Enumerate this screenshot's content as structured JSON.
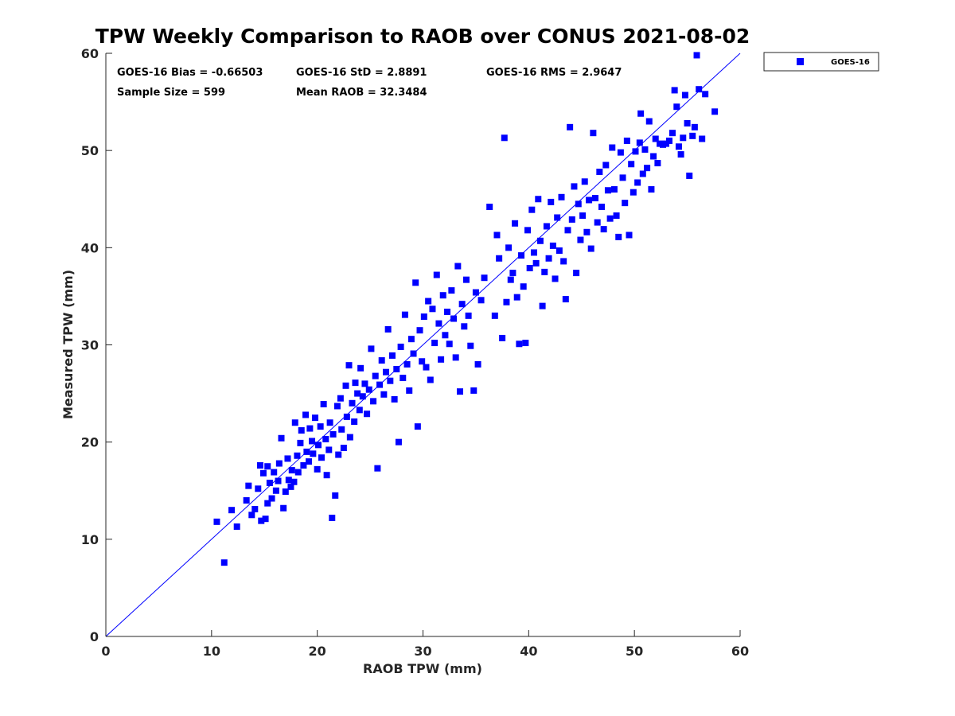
{
  "chart_data": {
    "type": "scatter",
    "title": "TPW Weekly Comparison to RAOB over CONUS 2021-08-02",
    "xlabel": "RAOB TPW (mm)",
    "ylabel": "Measured TPW (mm)",
    "xlim": [
      0,
      60
    ],
    "ylim": [
      0,
      60
    ],
    "xticks": [
      "0",
      "10",
      "20",
      "30",
      "40",
      "50",
      "60"
    ],
    "yticks": [
      "0",
      "10",
      "20",
      "30",
      "40",
      "50",
      "60"
    ],
    "grid": false,
    "legend_position": "outside-top-right",
    "reference_line": {
      "name": "1:1 line",
      "x": [
        0,
        60
      ],
      "y": [
        0,
        60
      ],
      "color": "#0000ff"
    },
    "stats": {
      "bias": "GOES-16 Bias = -0.66503",
      "std": "GOES-16 StD = 2.8891",
      "rms": "GOES-16 RMS = 2.9647",
      "sample_size": "Sample Size = 599",
      "mean_raob": "Mean RAOB = 32.3484"
    },
    "series": [
      {
        "name": "GOES-16",
        "color": "#0000ff",
        "marker": "square",
        "points": [
          [
            10.5,
            11.8
          ],
          [
            11.2,
            7.6
          ],
          [
            11.9,
            13.0
          ],
          [
            12.4,
            11.3
          ],
          [
            13.3,
            14.0
          ],
          [
            13.5,
            15.5
          ],
          [
            13.8,
            12.5
          ],
          [
            14.1,
            13.1
          ],
          [
            14.4,
            15.2
          ],
          [
            14.6,
            17.6
          ],
          [
            14.7,
            11.9
          ],
          [
            14.9,
            16.8
          ],
          [
            15.1,
            12.1
          ],
          [
            15.3,
            13.7
          ],
          [
            15.3,
            17.5
          ],
          [
            15.5,
            15.8
          ],
          [
            15.7,
            14.2
          ],
          [
            15.9,
            16.9
          ],
          [
            16.1,
            15.0
          ],
          [
            16.3,
            16.0
          ],
          [
            16.4,
            17.8
          ],
          [
            16.6,
            20.4
          ],
          [
            16.8,
            13.2
          ],
          [
            17.0,
            14.9
          ],
          [
            17.2,
            18.3
          ],
          [
            17.3,
            16.1
          ],
          [
            17.5,
            15.4
          ],
          [
            17.6,
            17.1
          ],
          [
            17.8,
            15.9
          ],
          [
            17.9,
            22.0
          ],
          [
            18.1,
            18.6
          ],
          [
            18.2,
            16.9
          ],
          [
            18.4,
            19.9
          ],
          [
            18.5,
            21.2
          ],
          [
            18.7,
            17.6
          ],
          [
            18.9,
            22.8
          ],
          [
            19.0,
            19.0
          ],
          [
            19.2,
            18.0
          ],
          [
            19.3,
            21.4
          ],
          [
            19.5,
            20.1
          ],
          [
            19.6,
            18.8
          ],
          [
            19.8,
            22.5
          ],
          [
            20.0,
            17.2
          ],
          [
            20.1,
            19.7
          ],
          [
            20.3,
            21.6
          ],
          [
            20.4,
            18.4
          ],
          [
            20.6,
            23.9
          ],
          [
            20.8,
            20.3
          ],
          [
            20.9,
            16.6
          ],
          [
            21.1,
            19.2
          ],
          [
            21.2,
            22.0
          ],
          [
            21.4,
            12.2
          ],
          [
            21.5,
            20.8
          ],
          [
            21.7,
            14.5
          ],
          [
            21.9,
            23.7
          ],
          [
            22.0,
            18.7
          ],
          [
            22.2,
            24.5
          ],
          [
            22.3,
            21.3
          ],
          [
            22.5,
            19.4
          ],
          [
            22.7,
            25.8
          ],
          [
            22.8,
            22.6
          ],
          [
            23.0,
            27.9
          ],
          [
            23.1,
            20.5
          ],
          [
            23.3,
            24.0
          ],
          [
            23.5,
            22.1
          ],
          [
            23.6,
            26.1
          ],
          [
            23.8,
            25.0
          ],
          [
            24.0,
            23.3
          ],
          [
            24.1,
            27.6
          ],
          [
            24.3,
            24.7
          ],
          [
            24.5,
            26.0
          ],
          [
            24.7,
            22.9
          ],
          [
            24.9,
            25.4
          ],
          [
            25.1,
            29.6
          ],
          [
            25.3,
            24.2
          ],
          [
            25.5,
            26.8
          ],
          [
            25.7,
            17.3
          ],
          [
            25.9,
            25.9
          ],
          [
            26.1,
            28.4
          ],
          [
            26.3,
            24.9
          ],
          [
            26.5,
            27.2
          ],
          [
            26.7,
            31.6
          ],
          [
            26.9,
            26.3
          ],
          [
            27.1,
            28.9
          ],
          [
            27.3,
            24.4
          ],
          [
            27.5,
            27.5
          ],
          [
            27.7,
            20.0
          ],
          [
            27.9,
            29.8
          ],
          [
            28.1,
            26.6
          ],
          [
            28.3,
            33.1
          ],
          [
            28.5,
            28.0
          ],
          [
            28.7,
            25.3
          ],
          [
            28.9,
            30.6
          ],
          [
            29.1,
            29.1
          ],
          [
            29.3,
            36.4
          ],
          [
            29.5,
            21.6
          ],
          [
            29.7,
            31.5
          ],
          [
            29.9,
            28.3
          ],
          [
            30.1,
            32.9
          ],
          [
            30.3,
            27.7
          ],
          [
            30.5,
            34.5
          ],
          [
            30.7,
            26.4
          ],
          [
            30.9,
            33.7
          ],
          [
            31.1,
            30.2
          ],
          [
            31.3,
            37.2
          ],
          [
            31.5,
            32.2
          ],
          [
            31.7,
            28.5
          ],
          [
            31.9,
            35.1
          ],
          [
            32.1,
            31.0
          ],
          [
            32.3,
            33.4
          ],
          [
            32.5,
            30.1
          ],
          [
            32.7,
            35.6
          ],
          [
            32.9,
            32.7
          ],
          [
            33.1,
            28.7
          ],
          [
            33.3,
            38.1
          ],
          [
            33.5,
            25.2
          ],
          [
            33.7,
            34.2
          ],
          [
            33.9,
            31.9
          ],
          [
            34.1,
            36.7
          ],
          [
            34.3,
            33.0
          ],
          [
            34.5,
            29.9
          ],
          [
            34.8,
            25.3
          ],
          [
            35.0,
            35.4
          ],
          [
            35.2,
            28.0
          ],
          [
            35.5,
            34.6
          ],
          [
            35.8,
            36.9
          ],
          [
            36.3,
            44.2
          ],
          [
            36.8,
            33.0
          ],
          [
            37.0,
            41.3
          ],
          [
            37.2,
            38.9
          ],
          [
            37.5,
            30.7
          ],
          [
            37.7,
            51.3
          ],
          [
            37.9,
            34.4
          ],
          [
            38.1,
            40.0
          ],
          [
            38.3,
            36.7
          ],
          [
            38.5,
            37.4
          ],
          [
            38.7,
            42.5
          ],
          [
            38.9,
            34.9
          ],
          [
            39.1,
            30.1
          ],
          [
            39.3,
            39.2
          ],
          [
            39.5,
            36.0
          ],
          [
            39.7,
            30.2
          ],
          [
            39.9,
            41.8
          ],
          [
            40.1,
            37.9
          ],
          [
            40.3,
            43.9
          ],
          [
            40.5,
            39.5
          ],
          [
            40.7,
            38.4
          ],
          [
            40.9,
            45.0
          ],
          [
            41.1,
            40.7
          ],
          [
            41.3,
            34.0
          ],
          [
            41.5,
            37.5
          ],
          [
            41.7,
            42.2
          ],
          [
            41.9,
            38.9
          ],
          [
            42.1,
            44.7
          ],
          [
            42.3,
            40.2
          ],
          [
            42.5,
            36.8
          ],
          [
            42.7,
            43.1
          ],
          [
            42.9,
            39.7
          ],
          [
            43.1,
            45.2
          ],
          [
            43.3,
            38.6
          ],
          [
            43.5,
            34.7
          ],
          [
            43.7,
            41.8
          ],
          [
            43.9,
            52.4
          ],
          [
            44.1,
            42.9
          ],
          [
            44.3,
            46.3
          ],
          [
            44.5,
            37.4
          ],
          [
            44.7,
            44.5
          ],
          [
            44.9,
            40.8
          ],
          [
            45.1,
            43.3
          ],
          [
            45.3,
            46.8
          ],
          [
            45.5,
            41.6
          ],
          [
            45.7,
            44.9
          ],
          [
            45.9,
            39.9
          ],
          [
            46.1,
            51.8
          ],
          [
            46.3,
            45.1
          ],
          [
            46.5,
            42.6
          ],
          [
            46.7,
            47.8
          ],
          [
            46.9,
            44.2
          ],
          [
            47.1,
            41.9
          ],
          [
            47.3,
            48.5
          ],
          [
            47.5,
            45.9
          ],
          [
            47.7,
            43.0
          ],
          [
            47.9,
            50.3
          ],
          [
            48.1,
            46.0
          ],
          [
            48.3,
            43.3
          ],
          [
            48.5,
            41.1
          ],
          [
            48.7,
            49.8
          ],
          [
            48.9,
            47.2
          ],
          [
            49.1,
            44.6
          ],
          [
            49.3,
            51.0
          ],
          [
            49.5,
            41.3
          ],
          [
            49.7,
            48.6
          ],
          [
            49.9,
            45.7
          ],
          [
            50.1,
            49.9
          ],
          [
            50.3,
            46.7
          ],
          [
            50.5,
            50.8
          ],
          [
            50.6,
            53.8
          ],
          [
            50.8,
            47.6
          ],
          [
            51.0,
            50.1
          ],
          [
            51.2,
            48.2
          ],
          [
            51.4,
            53.0
          ],
          [
            51.6,
            46.0
          ],
          [
            51.8,
            49.4
          ],
          [
            52.0,
            51.2
          ],
          [
            52.2,
            48.7
          ],
          [
            52.4,
            50.7
          ],
          [
            52.7,
            50.6
          ],
          [
            53.0,
            50.7
          ],
          [
            53.3,
            51.0
          ],
          [
            53.6,
            51.8
          ],
          [
            53.8,
            56.2
          ],
          [
            54.0,
            54.5
          ],
          [
            54.2,
            50.4
          ],
          [
            54.4,
            49.6
          ],
          [
            54.6,
            51.3
          ],
          [
            54.8,
            55.7
          ],
          [
            55.0,
            52.8
          ],
          [
            55.2,
            47.4
          ],
          [
            55.5,
            51.5
          ],
          [
            55.7,
            52.4
          ],
          [
            55.9,
            59.8
          ],
          [
            56.1,
            56.3
          ],
          [
            56.4,
            51.2
          ],
          [
            56.7,
            55.8
          ],
          [
            57.6,
            54.0
          ]
        ]
      }
    ]
  }
}
